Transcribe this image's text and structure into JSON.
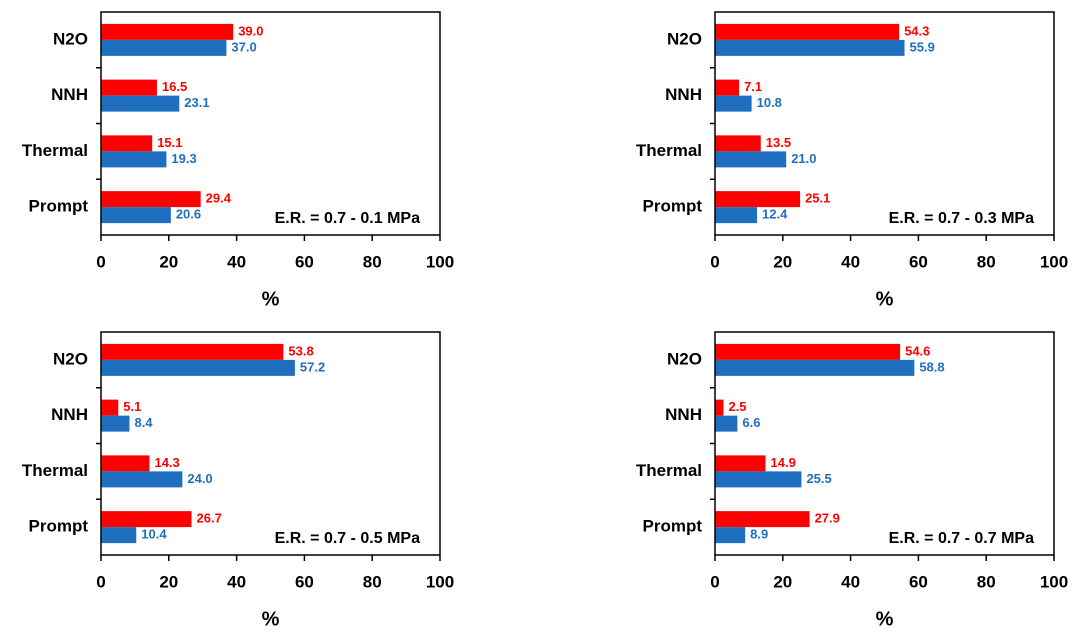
{
  "chart_data": [
    {
      "type": "hbar",
      "categories": [
        "N2O",
        "NNH",
        "Thermal",
        "Prompt"
      ],
      "series": [
        {
          "color": "#ff0000",
          "values": [
            39.0,
            16.5,
            15.1,
            29.4
          ],
          "value_labels": [
            "39.0",
            "16.5",
            "15.1",
            "29.4"
          ]
        },
        {
          "color": "#1f6fc0",
          "values": [
            37.0,
            23.1,
            19.3,
            20.6
          ],
          "value_labels": [
            "37.0",
            "23.1",
            "19.3",
            "20.6"
          ]
        }
      ],
      "annotation": "E.R. = 0.7 - 0.1 MPa",
      "xlabel": "%",
      "xlim": [
        0,
        100
      ],
      "xticks": [
        0,
        20,
        40,
        60,
        80,
        100
      ]
    },
    {
      "type": "hbar",
      "categories": [
        "N2O",
        "NNH",
        "Thermal",
        "Prompt"
      ],
      "series": [
        {
          "color": "#ff0000",
          "values": [
            54.3,
            7.1,
            13.5,
            25.1
          ],
          "value_labels": [
            "54.3",
            "7.1",
            "13.5",
            "25.1"
          ]
        },
        {
          "color": "#1f6fc0",
          "values": [
            55.9,
            10.8,
            21.0,
            12.4
          ],
          "value_labels": [
            "55.9",
            "10.8",
            "21.0",
            "12.4"
          ]
        }
      ],
      "annotation": "E.R. = 0.7 - 0.3 MPa",
      "xlabel": "%",
      "xlim": [
        0,
        100
      ],
      "xticks": [
        0,
        20,
        40,
        60,
        80,
        100
      ]
    },
    {
      "type": "hbar",
      "categories": [
        "N2O",
        "NNH",
        "Thermal",
        "Prompt"
      ],
      "series": [
        {
          "color": "#ff0000",
          "values": [
            53.8,
            5.1,
            14.3,
            26.7
          ],
          "value_labels": [
            "53.8",
            "5.1",
            "14.3",
            "26.7"
          ]
        },
        {
          "color": "#1f6fc0",
          "values": [
            57.2,
            8.4,
            24.0,
            10.4
          ],
          "value_labels": [
            "57.2",
            "8.4",
            "24.0",
            "10.4"
          ]
        }
      ],
      "annotation": "E.R. = 0.7 - 0.5 MPa",
      "xlabel": "%",
      "xlim": [
        0,
        100
      ],
      "xticks": [
        0,
        20,
        40,
        60,
        80,
        100
      ]
    },
    {
      "type": "hbar",
      "categories": [
        "N2O",
        "NNH",
        "Thermal",
        "Prompt"
      ],
      "series": [
        {
          "color": "#ff0000",
          "values": [
            54.6,
            2.5,
            14.9,
            27.9
          ],
          "value_labels": [
            "54.6",
            "2.5",
            "14.9",
            "27.9"
          ]
        },
        {
          "color": "#1f6fc0",
          "values": [
            58.8,
            6.6,
            25.5,
            8.9
          ],
          "value_labels": [
            "58.8",
            "6.6",
            "25.5",
            "8.9"
          ]
        }
      ],
      "annotation": "E.R. = 0.7 - 0.7 MPa",
      "xlabel": "%",
      "xlim": [
        0,
        100
      ],
      "xticks": [
        0,
        20,
        40,
        60,
        80,
        100
      ]
    }
  ]
}
